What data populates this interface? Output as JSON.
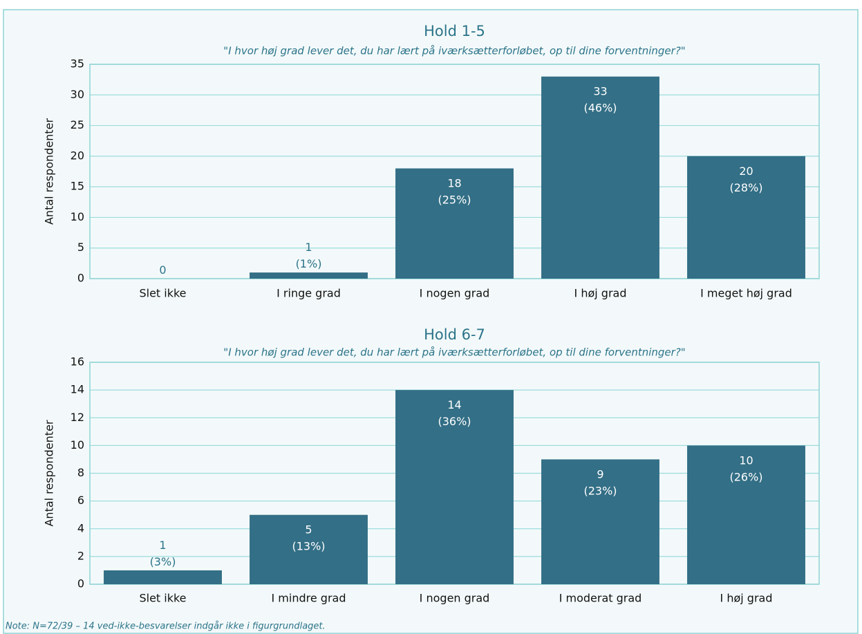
{
  "chart_data": [
    {
      "type": "bar",
      "title": "Hold 1-5",
      "subtitle": "\"I hvor høj grad lever det, du har lært på iværksætterforløbet, op til dine forventninger?\"",
      "ylabel": "Antal respondenter",
      "categories": [
        "Slet ikke",
        "I ringe grad",
        "I nogen grad",
        "I høj grad",
        "I meget høj grad"
      ],
      "values": [
        0,
        1,
        18,
        33,
        20
      ],
      "value_labels": [
        "0",
        "1\n(1%)",
        "18\n(25%)",
        "33\n(46%)",
        "20\n(28%)"
      ],
      "color": "#336f86",
      "ylim": [
        0,
        35
      ],
      "yticks": [
        0,
        5,
        10,
        15,
        20,
        25,
        30,
        35
      ],
      "grid": true
    },
    {
      "type": "bar",
      "title": "Hold 6-7",
      "subtitle": "\"I hvor høj grad lever det, du har lært på iværksætterforløbet, op til dine forventninger?\"",
      "ylabel": "Antal respondenter",
      "categories": [
        "Slet ikke",
        "I mindre grad",
        "I nogen grad",
        "I moderat grad",
        "I høj grad"
      ],
      "values": [
        1,
        5,
        14,
        9,
        10
      ],
      "value_labels": [
        "1\n(3%)",
        "5\n(13%)",
        "14\n(36%)",
        "9\n(23%)",
        "10\n(26%)"
      ],
      "color": "#336f86",
      "ylim": [
        0,
        16
      ],
      "yticks": [
        0,
        2,
        4,
        6,
        8,
        10,
        12,
        14,
        16
      ],
      "grid": true
    }
  ],
  "note": "Note: N=72/39 – 14 ved-ikke-besvarelser indgår ikke i figurgrundlaget."
}
